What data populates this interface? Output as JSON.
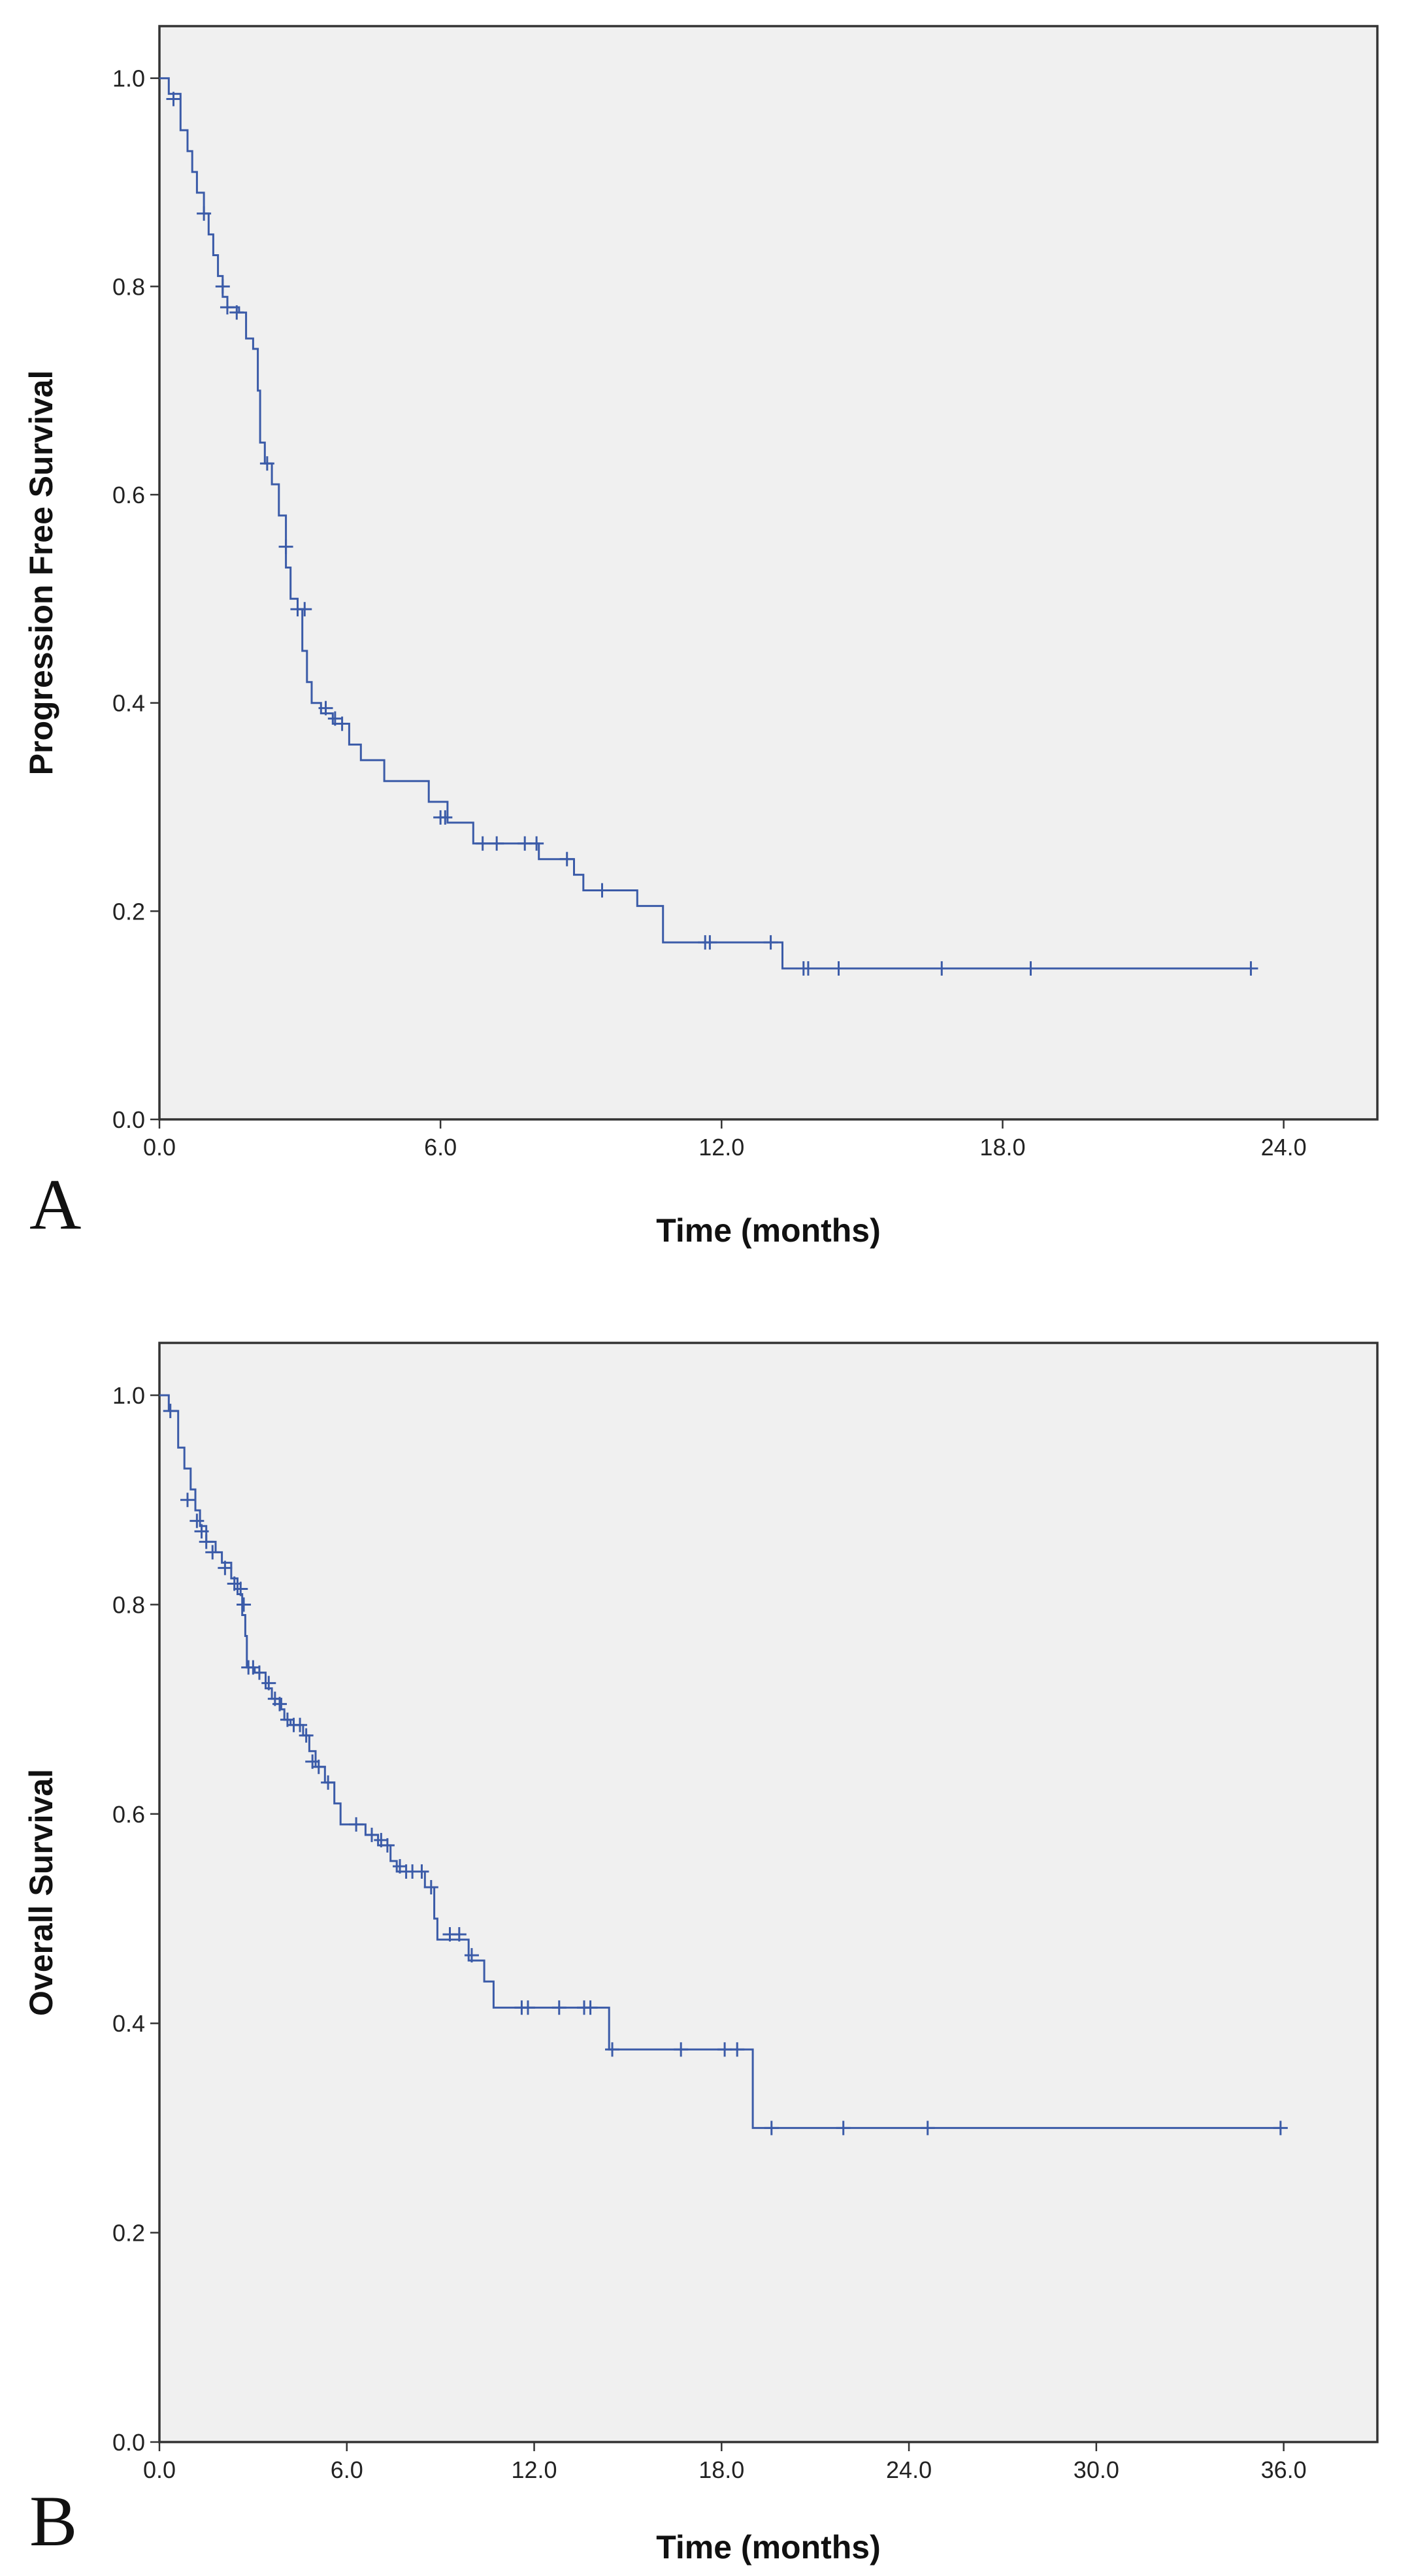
{
  "chart_data": [
    {
      "type": "line",
      "subtype": "kaplan-meier step",
      "panel_label": "A",
      "xlabel": "Time (months)",
      "ylabel": "Progression Free Survival",
      "xlim": [
        0,
        26
      ],
      "ylim": [
        0,
        1.05
      ],
      "x_ticks": [
        0,
        6,
        12,
        18,
        24
      ],
      "x_tick_labels": [
        "0.0",
        "6.0",
        "12.0",
        "18.0",
        "24.0"
      ],
      "y_ticks": [
        0,
        0.2,
        0.4,
        0.6,
        0.8,
        1.0
      ],
      "y_tick_labels": [
        "0.0",
        "0.2",
        "0.4",
        "0.6",
        "0.8",
        "1.0"
      ],
      "grid": false,
      "line_color": "#3b5ba8",
      "series": [
        {
          "name": "Progression Free Survival",
          "steps": [
            [
              0,
              1.0
            ],
            [
              0.2,
              0.985
            ],
            [
              0.45,
              0.95
            ],
            [
              0.6,
              0.93
            ],
            [
              0.7,
              0.91
            ],
            [
              0.8,
              0.89
            ],
            [
              0.95,
              0.87
            ],
            [
              1.05,
              0.85
            ],
            [
              1.15,
              0.83
            ],
            [
              1.25,
              0.81
            ],
            [
              1.35,
              0.79
            ],
            [
              1.45,
              0.78
            ],
            [
              1.7,
              0.775
            ],
            [
              1.85,
              0.75
            ],
            [
              2.0,
              0.74
            ],
            [
              2.1,
              0.7
            ],
            [
              2.15,
              0.65
            ],
            [
              2.25,
              0.63
            ],
            [
              2.4,
              0.61
            ],
            [
              2.55,
              0.58
            ],
            [
              2.7,
              0.53
            ],
            [
              2.8,
              0.5
            ],
            [
              2.95,
              0.49
            ],
            [
              3.05,
              0.45
            ],
            [
              3.15,
              0.42
            ],
            [
              3.25,
              0.4
            ],
            [
              3.45,
              0.39
            ],
            [
              3.7,
              0.38
            ],
            [
              4.05,
              0.36
            ],
            [
              4.3,
              0.345
            ],
            [
              4.8,
              0.325
            ],
            [
              5.75,
              0.305
            ],
            [
              6.15,
              0.285
            ],
            [
              6.7,
              0.265
            ],
            [
              8.1,
              0.25
            ],
            [
              8.85,
              0.235
            ],
            [
              9.05,
              0.22
            ],
            [
              10.2,
              0.205
            ],
            [
              10.75,
              0.17
            ],
            [
              13.3,
              0.145
            ],
            [
              23.3,
              0.145
            ]
          ],
          "censored": [
            [
              0.3,
              0.98
            ],
            [
              0.95,
              0.87
            ],
            [
              1.35,
              0.8
            ],
            [
              1.45,
              0.78
            ],
            [
              1.65,
              0.775
            ],
            [
              2.3,
              0.63
            ],
            [
              2.7,
              0.55
            ],
            [
              2.95,
              0.49
            ],
            [
              3.1,
              0.49
            ],
            [
              3.55,
              0.395
            ],
            [
              3.75,
              0.385
            ],
            [
              3.9,
              0.38
            ],
            [
              6.0,
              0.29
            ],
            [
              6.1,
              0.29
            ],
            [
              6.9,
              0.265
            ],
            [
              7.2,
              0.265
            ],
            [
              7.8,
              0.265
            ],
            [
              8.05,
              0.265
            ],
            [
              8.7,
              0.25
            ],
            [
              9.45,
              0.22
            ],
            [
              11.65,
              0.17
            ],
            [
              11.75,
              0.17
            ],
            [
              13.05,
              0.17
            ],
            [
              13.75,
              0.145
            ],
            [
              13.85,
              0.145
            ],
            [
              14.5,
              0.145
            ],
            [
              16.7,
              0.145
            ],
            [
              18.6,
              0.145
            ],
            [
              23.3,
              0.145
            ]
          ]
        }
      ]
    },
    {
      "type": "line",
      "subtype": "kaplan-meier step",
      "panel_label": "B",
      "xlabel": "Time (months)",
      "ylabel": "Overall Survival",
      "xlim": [
        0,
        39
      ],
      "ylim": [
        0,
        1.05
      ],
      "x_ticks": [
        0,
        6,
        12,
        18,
        24,
        30,
        36
      ],
      "x_tick_labels": [
        "0.0",
        "6.0",
        "12.0",
        "18.0",
        "24.0",
        "30.0",
        "36.0"
      ],
      "y_ticks": [
        0,
        0.2,
        0.4,
        0.6,
        0.8,
        1.0
      ],
      "y_tick_labels": [
        "0.0",
        "0.2",
        "0.4",
        "0.6",
        "0.8",
        "1.0"
      ],
      "grid": false,
      "line_color": "#3b5ba8",
      "series": [
        {
          "name": "Overall Survival",
          "steps": [
            [
              0,
              1.0
            ],
            [
              0.3,
              0.985
            ],
            [
              0.6,
              0.95
            ],
            [
              0.8,
              0.93
            ],
            [
              1.0,
              0.91
            ],
            [
              1.15,
              0.89
            ],
            [
              1.3,
              0.875
            ],
            [
              1.5,
              0.86
            ],
            [
              1.8,
              0.85
            ],
            [
              2.0,
              0.84
            ],
            [
              2.3,
              0.825
            ],
            [
              2.5,
              0.81
            ],
            [
              2.65,
              0.79
            ],
            [
              2.75,
              0.77
            ],
            [
              2.8,
              0.74
            ],
            [
              3.05,
              0.735
            ],
            [
              3.4,
              0.72
            ],
            [
              3.6,
              0.71
            ],
            [
              3.9,
              0.7
            ],
            [
              4.0,
              0.69
            ],
            [
              4.2,
              0.685
            ],
            [
              4.6,
              0.675
            ],
            [
              4.8,
              0.66
            ],
            [
              5.0,
              0.645
            ],
            [
              5.3,
              0.63
            ],
            [
              5.6,
              0.61
            ],
            [
              5.8,
              0.59
            ],
            [
              6.6,
              0.58
            ],
            [
              7.0,
              0.57
            ],
            [
              7.4,
              0.555
            ],
            [
              7.6,
              0.545
            ],
            [
              8.5,
              0.53
            ],
            [
              8.8,
              0.5
            ],
            [
              8.9,
              0.48
            ],
            [
              9.9,
              0.46
            ],
            [
              10.4,
              0.44
            ],
            [
              10.7,
              0.415
            ],
            [
              14.4,
              0.375
            ],
            [
              19.0,
              0.3
            ],
            [
              35.9,
              0.3
            ]
          ],
          "censored": [
            [
              0.35,
              0.985
            ],
            [
              0.9,
              0.9
            ],
            [
              1.2,
              0.88
            ],
            [
              1.35,
              0.87
            ],
            [
              1.5,
              0.86
            ],
            [
              1.7,
              0.85
            ],
            [
              2.1,
              0.835
            ],
            [
              2.4,
              0.82
            ],
            [
              2.6,
              0.815
            ],
            [
              2.7,
              0.8
            ],
            [
              2.85,
              0.74
            ],
            [
              3.0,
              0.74
            ],
            [
              3.2,
              0.735
            ],
            [
              3.5,
              0.725
            ],
            [
              3.7,
              0.71
            ],
            [
              3.85,
              0.705
            ],
            [
              4.1,
              0.69
            ],
            [
              4.3,
              0.685
            ],
            [
              4.5,
              0.685
            ],
            [
              4.7,
              0.675
            ],
            [
              4.9,
              0.65
            ],
            [
              5.1,
              0.645
            ],
            [
              5.4,
              0.63
            ],
            [
              6.3,
              0.59
            ],
            [
              6.8,
              0.58
            ],
            [
              7.1,
              0.575
            ],
            [
              7.3,
              0.57
            ],
            [
              7.7,
              0.55
            ],
            [
              7.9,
              0.545
            ],
            [
              8.1,
              0.545
            ],
            [
              8.4,
              0.545
            ],
            [
              8.7,
              0.53
            ],
            [
              9.3,
              0.485
            ],
            [
              9.6,
              0.485
            ],
            [
              10.0,
              0.465
            ],
            [
              11.6,
              0.415
            ],
            [
              11.8,
              0.415
            ],
            [
              12.8,
              0.415
            ],
            [
              13.6,
              0.415
            ],
            [
              13.8,
              0.415
            ],
            [
              14.5,
              0.375
            ],
            [
              16.7,
              0.375
            ],
            [
              18.1,
              0.375
            ],
            [
              18.5,
              0.375
            ],
            [
              19.6,
              0.3
            ],
            [
              21.9,
              0.3
            ],
            [
              24.6,
              0.3
            ],
            [
              35.9,
              0.3
            ]
          ]
        }
      ]
    }
  ]
}
